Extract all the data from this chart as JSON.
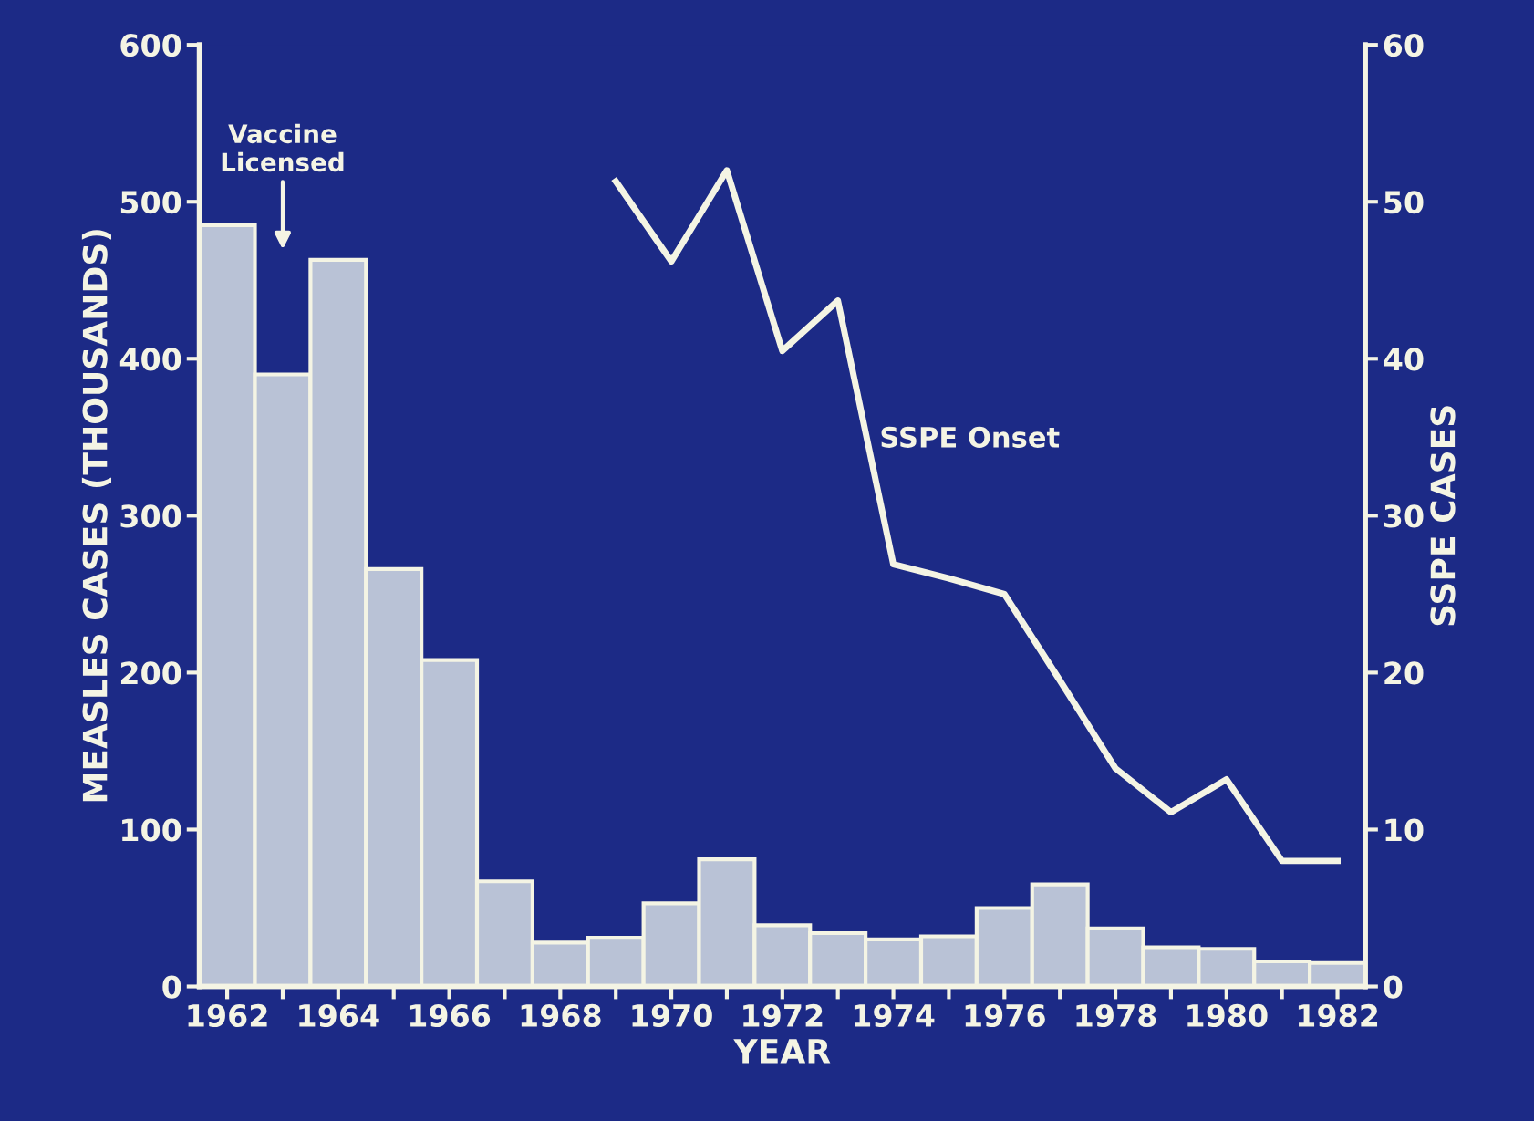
{
  "chart_data": {
    "type": "bar",
    "xlabel": "YEAR",
    "ylabel": "MEASLES CASES (THOUSANDS)",
    "y2label": "SSPE CASES",
    "categories": [
      "1962",
      null,
      "1964",
      null,
      "1966",
      null,
      "1968",
      null,
      "1970",
      null,
      "1972",
      null,
      "1974",
      null,
      "1976",
      null,
      "1978",
      null,
      "1980",
      null,
      "1982"
    ],
    "series": [
      {
        "color": "#b9c2d6",
        "values": [
          485,
          390,
          463,
          266,
          208,
          67,
          28,
          31,
          53,
          81,
          39,
          34,
          30,
          32,
          50,
          65,
          37,
          25,
          24,
          16,
          15
        ]
      },
      {
        "type": "line",
        "axis": "y2",
        "name": "SSPE Onset",
        "color": "#f4f4e4",
        "values": [
          null,
          null,
          null,
          null,
          null,
          null,
          null,
          51.3,
          46.2,
          52,
          40.5,
          43.7,
          26.9,
          26,
          25,
          19.5,
          13.9,
          11.1,
          13.2,
          8,
          8
        ]
      }
    ],
    "ylim": [
      0,
      600
    ],
    "yticks": [
      0,
      100,
      200,
      300,
      400,
      500,
      600
    ],
    "y2lim": [
      0,
      60
    ],
    "y2ticks": [
      0,
      10,
      20,
      30,
      40,
      50,
      60
    ],
    "annotations": [
      "Vaccine\nLicensed"
    ],
    "grid": false,
    "legend": false,
    "marker": "none",
    "line_style": "solid"
  }
}
